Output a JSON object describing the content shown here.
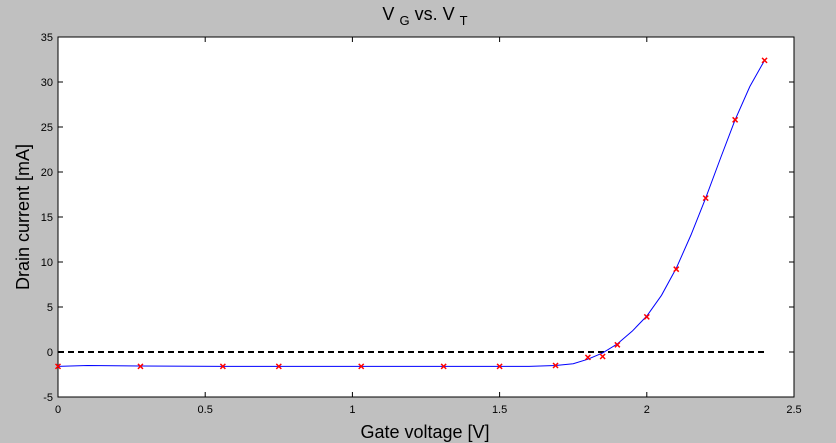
{
  "chart_data": {
    "type": "line",
    "title": {
      "main_1": "V",
      "sub_1": "G",
      "middle": " vs. V",
      "sub_2": "T"
    },
    "xlabel": "Gate voltage [V]",
    "ylabel": "Drain current [mA]",
    "xlim": [
      0,
      2.5
    ],
    "ylim": [
      -5,
      35
    ],
    "xticks": [
      0,
      0.5,
      1,
      1.5,
      2,
      2.5
    ],
    "yticks": [
      -5,
      0,
      5,
      10,
      15,
      20,
      25,
      30,
      35
    ],
    "xtick_labels": [
      "0",
      "0.5",
      "1",
      "1.5",
      "2",
      "2.5"
    ],
    "ytick_labels": [
      "-5",
      "0",
      "5",
      "10",
      "15",
      "20",
      "25",
      "30",
      "35"
    ],
    "grid": false,
    "series": [
      {
        "kind": "measured points",
        "marker": "x",
        "color": "#ff0000",
        "x": [
          0,
          0.28,
          0.56,
          0.75,
          1.03,
          1.31,
          1.5,
          1.69,
          1.8,
          1.85,
          1.9,
          2.0,
          2.1,
          2.2,
          2.3,
          2.4
        ],
        "y": [
          -1.6,
          -1.6,
          -1.6,
          -1.6,
          -1.6,
          -1.6,
          -1.6,
          -1.5,
          -0.6,
          -0.5,
          0.8,
          3.9,
          9.2,
          17.1,
          25.8,
          32.4
        ]
      },
      {
        "kind": "fitted curve",
        "color": "#0000ff",
        "x": [
          0,
          0.1,
          0.28,
          0.56,
          0.75,
          1.0,
          1.2,
          1.4,
          1.5,
          1.6,
          1.69,
          1.75,
          1.8,
          1.85,
          1.9,
          1.95,
          2.0,
          2.05,
          2.1,
          2.15,
          2.2,
          2.25,
          2.3,
          2.35,
          2.4
        ],
        "y": [
          -1.6,
          -1.5,
          -1.55,
          -1.6,
          -1.6,
          -1.6,
          -1.6,
          -1.6,
          -1.6,
          -1.6,
          -1.5,
          -1.3,
          -0.8,
          -0.1,
          0.9,
          2.3,
          4.0,
          6.3,
          9.3,
          13.0,
          17.1,
          21.5,
          25.8,
          29.5,
          32.4
        ]
      },
      {
        "kind": "reference line",
        "style": "dashed",
        "color": "#000000",
        "x": [
          0,
          2.4
        ],
        "y": [
          0,
          0
        ]
      }
    ]
  }
}
